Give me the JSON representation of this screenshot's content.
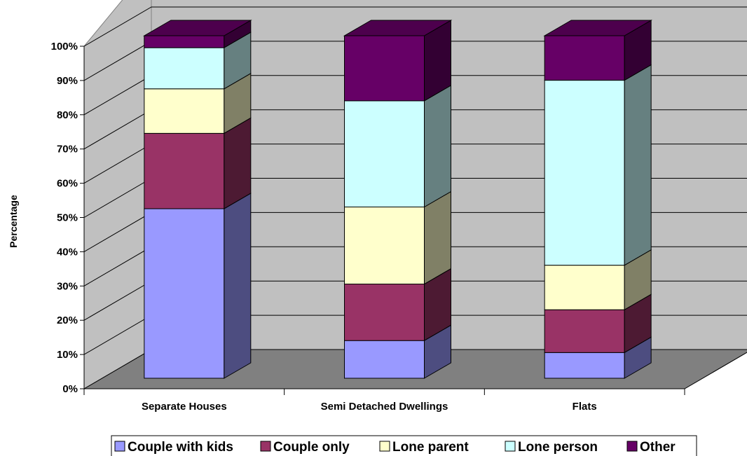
{
  "chart_data": {
    "type": "bar",
    "stacked": true,
    "percent_stacked": true,
    "three_d": true,
    "title": "",
    "xlabel": "",
    "ylabel": "Percentage",
    "categories": [
      "Separate Houses",
      "Semi Detached Dwellings",
      "Flats"
    ],
    "y_ticks": [
      "0%",
      "10%",
      "20%",
      "30%",
      "40%",
      "50%",
      "60%",
      "70%",
      "80%",
      "90%",
      "100%"
    ],
    "ylim": [
      0,
      100
    ],
    "grid": true,
    "legend_position": "bottom",
    "series": [
      {
        "name": "Couple with kids",
        "values": [
          49.5,
          11.0,
          7.5
        ],
        "color": "#9999ff"
      },
      {
        "name": "Couple only",
        "values": [
          22.0,
          16.5,
          12.5
        ],
        "color": "#993366"
      },
      {
        "name": "Lone parent",
        "values": [
          13.0,
          22.5,
          13.0
        ],
        "color": "#ffffcc"
      },
      {
        "name": "Lone person",
        "values": [
          12.0,
          31.0,
          54.0
        ],
        "color": "#ccffff"
      },
      {
        "name": "Other",
        "values": [
          3.5,
          19.0,
          13.0
        ],
        "color": "#660066"
      }
    ]
  }
}
